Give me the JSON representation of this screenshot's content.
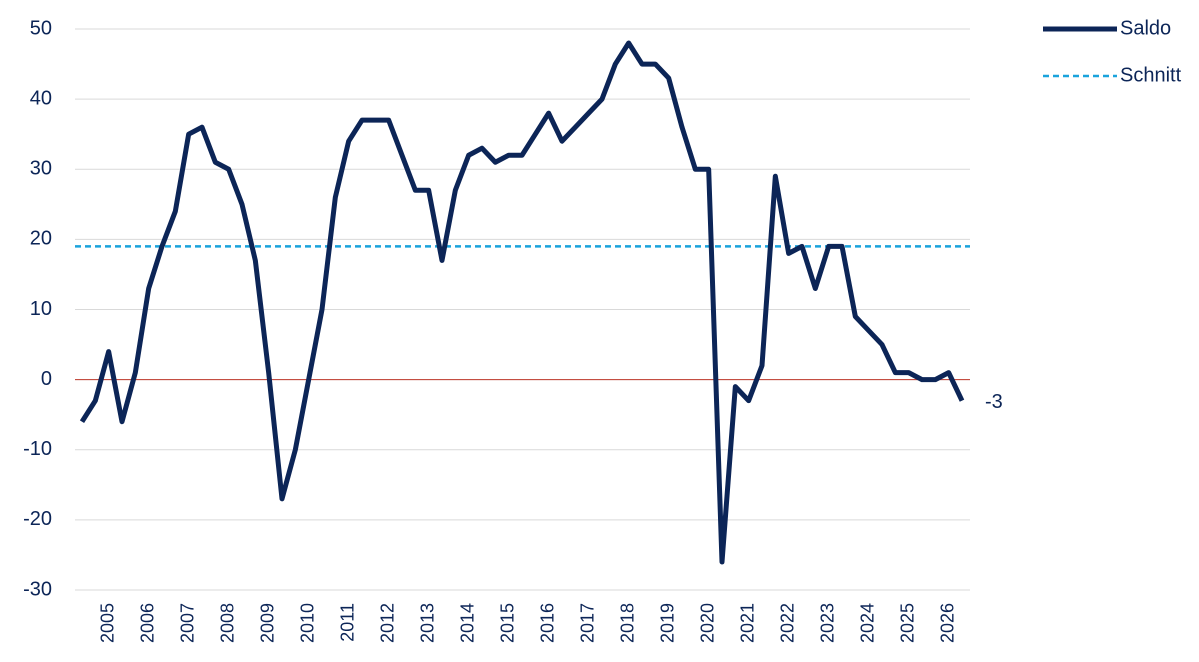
{
  "chart_data": {
    "type": "line",
    "categories": [
      null,
      null,
      "2005",
      null,
      null,
      "2006",
      null,
      null,
      "2007",
      null,
      null,
      "2008",
      null,
      null,
      "2009",
      null,
      null,
      "2010",
      null,
      null,
      "2011",
      null,
      null,
      "2012",
      null,
      null,
      "2013",
      null,
      null,
      "2014",
      null,
      null,
      "2015",
      null,
      null,
      "2016",
      null,
      null,
      "2017",
      null,
      null,
      "2018",
      null,
      null,
      "2019",
      null,
      null,
      "2020",
      null,
      null,
      "2021",
      null,
      null,
      "2022",
      null,
      null,
      "2023",
      null,
      null,
      "2024",
      null,
      null,
      "2025",
      null,
      null,
      "2026",
      null
    ],
    "series": [
      {
        "name": "Saldo",
        "color": "#0c2557",
        "values": [
          -6,
          -3,
          4,
          -6,
          1,
          13,
          19,
          24,
          35,
          36,
          31,
          30,
          25,
          17,
          1,
          -17,
          -10,
          0,
          10,
          26,
          34,
          37,
          37,
          37,
          32,
          27,
          27,
          17,
          27,
          32,
          33,
          31,
          32,
          32,
          35,
          38,
          34,
          36,
          38,
          40,
          45,
          48,
          45,
          45,
          43,
          36,
          30,
          30,
          -26,
          -1,
          -3,
          2,
          29,
          18,
          19,
          13,
          19,
          19,
          9,
          7,
          5,
          1,
          1,
          0,
          0,
          1,
          -3
        ]
      }
    ],
    "reference_line": {
      "name": "Schnitt",
      "value": 19,
      "color": "#1aa3dc"
    },
    "zero_line_color": "#c0392b",
    "ylim": [
      -30,
      50
    ],
    "yticks": [
      -30,
      -20,
      -10,
      0,
      10,
      20,
      30,
      40,
      50
    ],
    "grid": true,
    "legend": "top-right"
  }
}
